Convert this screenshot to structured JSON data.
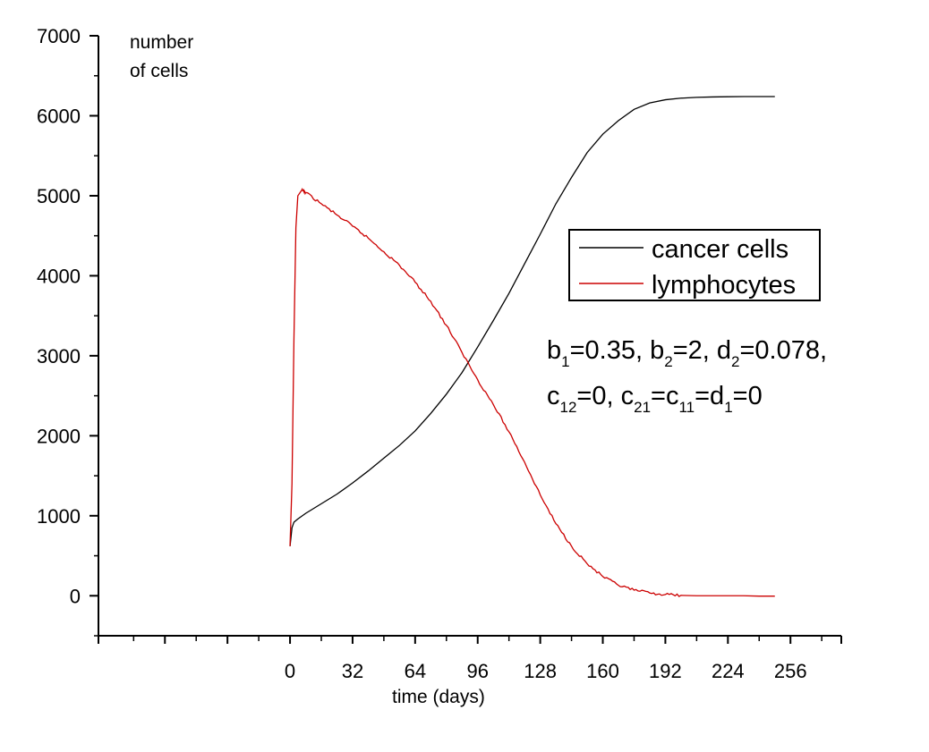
{
  "chart_data": {
    "type": "line",
    "title": "",
    "ylabel_lines": [
      "number",
      "of cells"
    ],
    "xlabel": "time (days)",
    "xlim": [
      -98,
      282
    ],
    "ylim": [
      -500,
      7000
    ],
    "x_ticks": [
      0,
      32,
      64,
      96,
      128,
      160,
      192,
      224,
      256
    ],
    "x_tick_labels": [
      "0",
      "32",
      "64",
      "96",
      "128",
      "160",
      "192",
      "224",
      "256"
    ],
    "y_ticks": [
      0,
      1000,
      2000,
      3000,
      4000,
      5000,
      6000,
      7000
    ],
    "y_tick_labels": [
      "0",
      "1000",
      "2000",
      "3000",
      "4000",
      "5000",
      "6000",
      "7000"
    ],
    "grid": false,
    "legend_position": "right",
    "series": [
      {
        "name": "cancer cells",
        "color": "#000000",
        "x": [
          0,
          1,
          2,
          4,
          8,
          16,
          24,
          32,
          40,
          48,
          56,
          64,
          72,
          80,
          88,
          96,
          104,
          112,
          120,
          128,
          136,
          144,
          152,
          160,
          168,
          176,
          184,
          192,
          200,
          208,
          216,
          224,
          232,
          240,
          248
        ],
        "y": [
          620,
          850,
          920,
          960,
          1030,
          1150,
          1270,
          1410,
          1560,
          1720,
          1880,
          2060,
          2280,
          2520,
          2790,
          3110,
          3440,
          3780,
          4150,
          4520,
          4900,
          5230,
          5540,
          5770,
          5940,
          6080,
          6160,
          6200,
          6220,
          6230,
          6235,
          6238,
          6240,
          6240,
          6240
        ]
      },
      {
        "name": "lymphocytes",
        "color": "#cc0000",
        "x": [
          0,
          1,
          2,
          3,
          4,
          6,
          8,
          16,
          24,
          32,
          40,
          48,
          56,
          64,
          72,
          80,
          88,
          96,
          104,
          112,
          120,
          128,
          136,
          144,
          152,
          160,
          168,
          176,
          184,
          192,
          200,
          208,
          216,
          224,
          232,
          240,
          248
        ],
        "y": [
          620,
          1400,
          3200,
          4600,
          5000,
          5070,
          5040,
          4900,
          4760,
          4620,
          4470,
          4300,
          4130,
          3920,
          3680,
          3380,
          3040,
          2700,
          2390,
          2050,
          1670,
          1260,
          900,
          620,
          400,
          240,
          130,
          70,
          35,
          15,
          5,
          0,
          0,
          0,
          0,
          -5,
          -5
        ]
      }
    ]
  },
  "annotation": {
    "params_line1": [
      {
        "t": "b"
      },
      {
        "sub": "1"
      },
      {
        "t": "=0.35, b"
      },
      {
        "sub": "2"
      },
      {
        "t": "=2, d"
      },
      {
        "sub": "2"
      },
      {
        "t": "=0.078,"
      }
    ],
    "params_line2": [
      {
        "t": "c"
      },
      {
        "sub": "12"
      },
      {
        "t": "=0, c"
      },
      {
        "sub": "21"
      },
      {
        "t": "=c"
      },
      {
        "sub": "11"
      },
      {
        "t": "=d"
      },
      {
        "sub": "1"
      },
      {
        "t": "=0"
      }
    ]
  }
}
